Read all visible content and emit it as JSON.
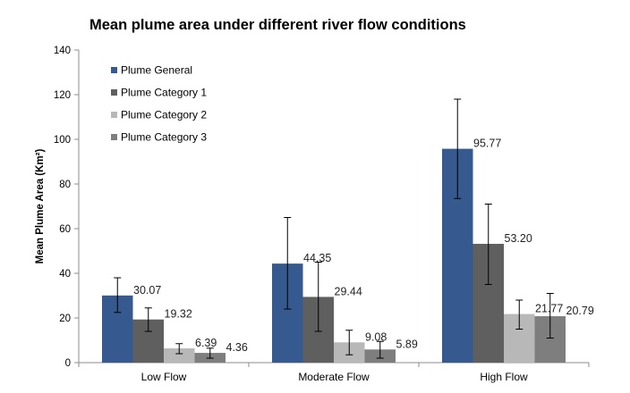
{
  "chart_data": {
    "type": "bar",
    "title": "Mean plume area under different river flow conditions",
    "xlabel": "",
    "ylabel": "Mean Plume Area (Km²)",
    "ylim": [
      0,
      140
    ],
    "yticks": [
      0,
      20,
      40,
      60,
      80,
      100,
      120,
      140
    ],
    "grid": false,
    "legend": "top-left",
    "categories": [
      "Low Flow",
      "Moderate Flow",
      "High Flow"
    ],
    "series": [
      {
        "name": "Plume General",
        "color": "#36598f",
        "values": [
          30.07,
          44.35,
          95.77
        ],
        "labels": [
          "30.07",
          "44.35",
          "95.77"
        ],
        "error_low": [
          22.5,
          24,
          73.5
        ],
        "error_high": [
          38,
          65,
          118
        ]
      },
      {
        "name": "Plume Category 1",
        "color": "#5f5f5f",
        "values": [
          19.32,
          29.44,
          53.2
        ],
        "labels": [
          "19.32",
          "29.44",
          "53.20"
        ],
        "error_low": [
          14,
          14,
          35
        ],
        "error_high": [
          24.5,
          45,
          71
        ]
      },
      {
        "name": "Plume Category 2",
        "color": "#b8b8b8",
        "values": [
          6.39,
          9.08,
          21.77
        ],
        "labels": [
          "6.39",
          "9.08",
          "21.77"
        ],
        "error_low": [
          4,
          3.5,
          15
        ],
        "error_high": [
          8.5,
          14.5,
          28
        ]
      },
      {
        "name": "Plume Category 3",
        "color": "#7e7e7e",
        "values": [
          4.36,
          5.89,
          20.79
        ],
        "labels": [
          "4.36",
          "5.89",
          "20.79"
        ],
        "error_low": [
          2,
          2,
          11
        ],
        "error_high": [
          6.5,
          9.5,
          31
        ]
      }
    ]
  }
}
